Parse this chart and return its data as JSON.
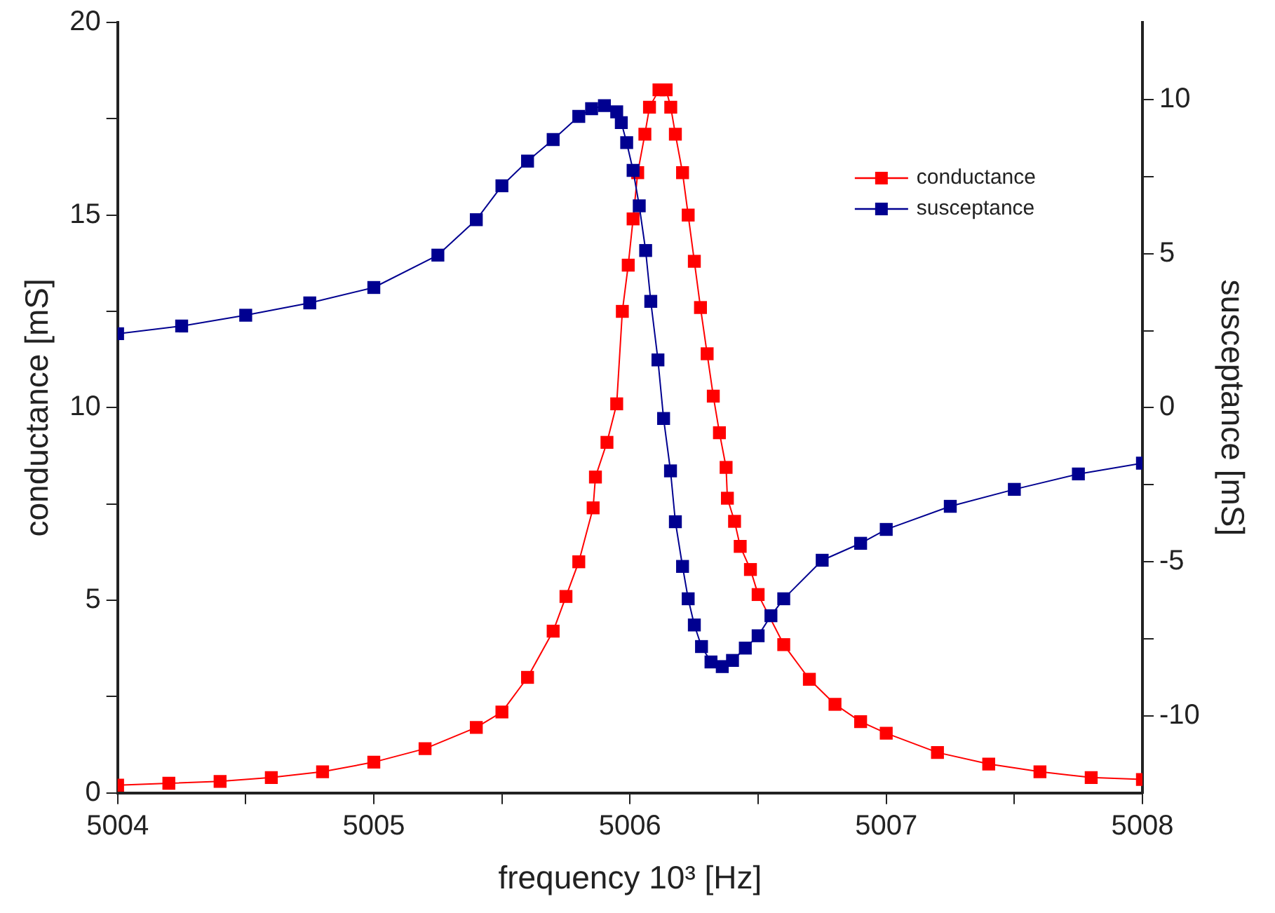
{
  "chart_data": {
    "type": "line",
    "xlabel": "frequency 10³ [Hz]",
    "ylabel": "conductance [mS]",
    "y2label": "susceptance [mS]",
    "xlim": [
      5004,
      5008
    ],
    "xticks": [
      5004,
      {
        "value": 5004.5,
        "label": null
      },
      5005,
      {
        "value": 5005.5,
        "label": null
      },
      5006,
      {
        "value": 5006.5,
        "label": null
      },
      5007,
      {
        "value": 5007.5,
        "label": null
      },
      5008
    ],
    "ylim": [
      0,
      20
    ],
    "yticks": [
      0,
      {
        "value": 2.5,
        "label": null
      },
      5,
      {
        "value": 7.5,
        "label": null
      },
      10,
      {
        "value": 12.5,
        "label": null
      },
      15,
      {
        "value": 17.5,
        "label": null
      },
      20
    ],
    "y2lim": [
      -12.5,
      12.5
    ],
    "y2ticks": [
      -10,
      {
        "value": -7.5,
        "label": null
      },
      -5,
      {
        "value": -2.5,
        "label": null
      },
      0,
      {
        "value": 2.5,
        "label": null
      },
      5,
      {
        "value": 7.5,
        "label": null
      },
      10
    ],
    "grid": false,
    "legend": "top right",
    "marker": "square",
    "line_style": "solid",
    "series": [
      {
        "name": "conductance",
        "color": "#ff0000",
        "x": [
          5004,
          5004.2,
          5004.4,
          5004.6,
          5004.8,
          5005,
          5005.2,
          5005.4,
          5005.5,
          5005.6,
          5005.7,
          5005.75,
          5005.8,
          5005.856,
          5005.865,
          5005.91,
          5005.948,
          5005.97,
          5005.993,
          5006.012,
          5006.03,
          5006.058,
          5006.076,
          5006.113,
          5006.141,
          5006.159,
          5006.177,
          5006.205,
          5006.227,
          5006.251,
          5006.275,
          5006.301,
          5006.325,
          5006.349,
          5006.375,
          5006.38,
          5006.408,
          5006.43,
          5006.47,
          5006.5,
          5006.6,
          5006.7,
          5006.8,
          5006.9,
          5007,
          5007.2,
          5007.4,
          5007.6,
          5007.8,
          5008
        ],
        "values": [
          0.2,
          0.25,
          0.3,
          0.4,
          0.55,
          0.8,
          1.15,
          1.7,
          2.1,
          3.0,
          4.2,
          5.1,
          6.0,
          7.4,
          8.2,
          9.1,
          10.1,
          12.5,
          13.7,
          14.9,
          16.1,
          17.1,
          17.8,
          18.25,
          18.25,
          17.8,
          17.1,
          16.1,
          15.0,
          13.8,
          12.6,
          11.4,
          10.3,
          9.35,
          8.45,
          7.65,
          7.05,
          6.4,
          5.8,
          5.15,
          3.85,
          2.95,
          2.3,
          1.85,
          1.55,
          1.05,
          0.75,
          0.55,
          0.4,
          0.35
        ]
      },
      {
        "name": "susceptance",
        "color": "#000090",
        "axis": "y2",
        "x": [
          5004,
          5004.25,
          5004.5,
          5004.75,
          5005,
          5005.25,
          5005.4,
          5005.5,
          5005.6,
          5005.7,
          5005.8,
          5005.85,
          5005.9,
          5005.948,
          5005.966,
          5005.987,
          5006.012,
          5006.036,
          5006.061,
          5006.081,
          5006.109,
          5006.131,
          5006.158,
          5006.177,
          5006.205,
          5006.227,
          5006.251,
          5006.279,
          5006.316,
          5006.36,
          5006.4,
          5006.45,
          5006.5,
          5006.55,
          5006.6,
          5006.75,
          5006.9,
          5007,
          5007.25,
          5007.5,
          5007.75,
          5008
        ],
        "values": [
          2.4,
          2.65,
          3.0,
          3.4,
          3.9,
          4.95,
          6.1,
          7.2,
          8.0,
          8.7,
          9.45,
          9.7,
          9.8,
          9.6,
          9.25,
          8.6,
          7.7,
          6.55,
          5.1,
          3.45,
          1.55,
          -0.35,
          -2.05,
          -3.7,
          -5.15,
          -6.2,
          -7.05,
          -7.75,
          -8.25,
          -8.4,
          -8.2,
          -7.8,
          -7.4,
          -6.75,
          -6.2,
          -4.95,
          -4.4,
          -3.95,
          -3.2,
          -2.65,
          -2.15,
          -1.8
        ]
      }
    ]
  }
}
